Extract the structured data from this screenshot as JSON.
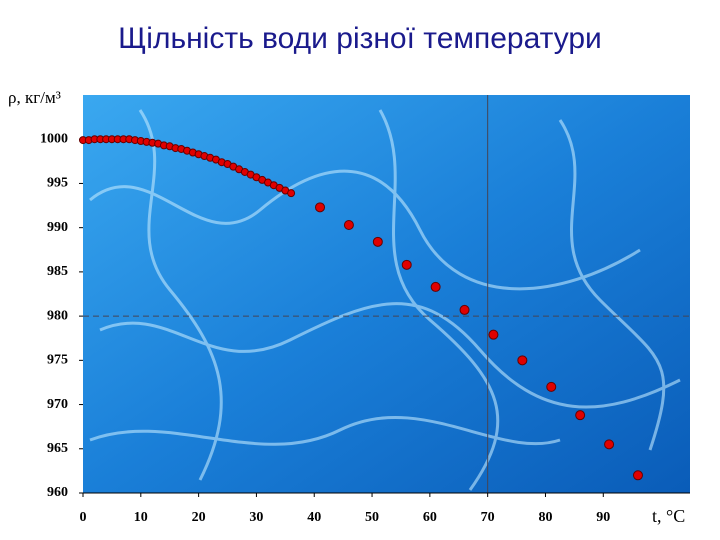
{
  "chart_data": {
    "type": "scatter",
    "title": "Щільність води різної температури",
    "y_label": "ρ, кг/м³",
    "x_label": "t, °C",
    "xlim": [
      0,
      105
    ],
    "ylim": [
      960,
      1005
    ],
    "xticks": [
      0,
      10,
      20,
      30,
      40,
      50,
      60,
      70,
      80,
      90
    ],
    "yticks": [
      960,
      965,
      970,
      975,
      980,
      985,
      990,
      995,
      1000
    ],
    "reference_lines": [
      {
        "axis": "x",
        "value": 70
      },
      {
        "axis": "y",
        "value": 980
      }
    ],
    "series": [
      {
        "color": "#e00000",
        "x": [
          0,
          1,
          2,
          3,
          4,
          5,
          6,
          7,
          8,
          9,
          10,
          11,
          12,
          13,
          14,
          15,
          16,
          17,
          18,
          19,
          20,
          21,
          22,
          23,
          24,
          25,
          26,
          27,
          28,
          29,
          30,
          31,
          32,
          33,
          34,
          35,
          36
        ],
        "values": [
          999.9,
          999.9,
          1000,
          1000,
          1000,
          1000,
          1000,
          1000,
          1000,
          999.9,
          999.8,
          999.7,
          999.6,
          999.5,
          999.3,
          999.2,
          999.0,
          998.9,
          998.7,
          998.5,
          998.3,
          998.1,
          997.9,
          997.7,
          997.4,
          997.2,
          996.9,
          996.6,
          996.3,
          996.0,
          995.7,
          995.4,
          995.1,
          994.8,
          994.5,
          994.2,
          993.9
        ]
      },
      {
        "color": "#e00000",
        "x": [
          41,
          46,
          51,
          56,
          61,
          66,
          71,
          76,
          81,
          86,
          91,
          96
        ],
        "values": [
          992.3,
          990.3,
          988.4,
          985.8,
          983.3,
          980.7,
          977.9,
          975.0,
          972.0,
          968.8,
          965.5,
          962.0
        ]
      }
    ]
  }
}
